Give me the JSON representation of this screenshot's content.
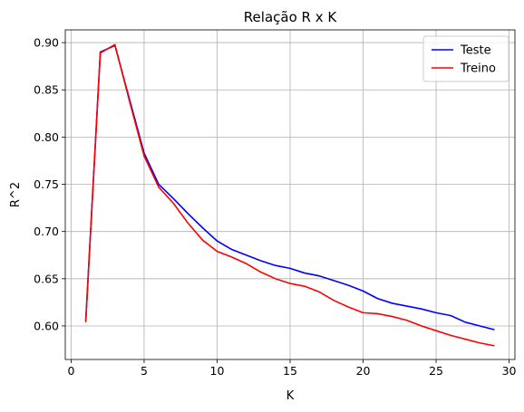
{
  "chart_data": {
    "type": "line",
    "title": "Relação R x K",
    "xlabel": "K",
    "ylabel": "R^2",
    "xlim": [
      -0.4,
      30.4
    ],
    "ylim": [
      0.5645,
      0.9135
    ],
    "xticks": [
      0,
      5,
      10,
      15,
      20,
      25,
      30
    ],
    "xtick_labels": [
      "0",
      "5",
      "10",
      "15",
      "20",
      "25",
      "30"
    ],
    "yticks": [
      0.6,
      0.65,
      0.7,
      0.75,
      0.8,
      0.85,
      0.9
    ],
    "ytick_labels": [
      "0.60",
      "0.65",
      "0.70",
      "0.75",
      "0.80",
      "0.85",
      "0.90"
    ],
    "grid": true,
    "legend_position": "top-right",
    "x": [
      1,
      2,
      3,
      4,
      5,
      6,
      7,
      8,
      9,
      10,
      11,
      12,
      13,
      14,
      15,
      16,
      17,
      18,
      19,
      20,
      21,
      22,
      23,
      24,
      25,
      26,
      27,
      28,
      29
    ],
    "series": [
      {
        "name": "Teste",
        "color": "#0000ff",
        "values": [
          0.605,
          0.89,
          0.897,
          0.84,
          0.783,
          0.75,
          0.735,
          0.719,
          0.704,
          0.69,
          0.681,
          0.675,
          0.669,
          0.664,
          0.661,
          0.656,
          0.653,
          0.648,
          0.643,
          0.637,
          0.629,
          0.624,
          0.621,
          0.618,
          0.614,
          0.611,
          0.604,
          0.6,
          0.596
        ]
      },
      {
        "name": "Treino",
        "color": "#ff0000",
        "values": [
          0.604,
          0.889,
          0.898,
          0.838,
          0.78,
          0.747,
          0.73,
          0.709,
          0.691,
          0.679,
          0.673,
          0.666,
          0.657,
          0.65,
          0.645,
          0.642,
          0.636,
          0.627,
          0.62,
          0.614,
          0.613,
          0.61,
          0.606,
          0.6,
          0.595,
          0.59,
          0.586,
          0.582,
          0.579
        ]
      }
    ]
  }
}
